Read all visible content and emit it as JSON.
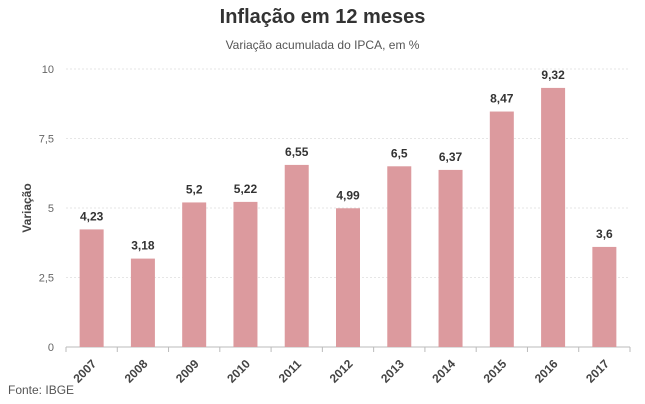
{
  "chart_data": {
    "type": "bar",
    "title": "Inflação em 12 meses",
    "subtitle": "Variação acumulada do IPCA, em %",
    "ylabel": "Variação",
    "xlabel": "",
    "categories": [
      "2007",
      "2008",
      "2009",
      "2010",
      "2011",
      "2012",
      "2013",
      "2014",
      "2015",
      "2016",
      "2017"
    ],
    "values": [
      4.23,
      3.18,
      5.2,
      5.22,
      6.55,
      4.99,
      6.5,
      6.37,
      8.47,
      9.32,
      3.6
    ],
    "value_labels": [
      "4,23",
      "3,18",
      "5,2",
      "5,22",
      "6,55",
      "4,99",
      "6,5",
      "6,37",
      "8,47",
      "9,32",
      "3,6"
    ],
    "ylim": [
      0,
      10
    ],
    "yticks": [
      0,
      2.5,
      5,
      7.5,
      10
    ],
    "ytick_labels": [
      "0",
      "2,5",
      "5",
      "7,5",
      "10"
    ],
    "grid": true,
    "bar_color": "#dc9a9e",
    "source": "Fonte: IBGE"
  }
}
